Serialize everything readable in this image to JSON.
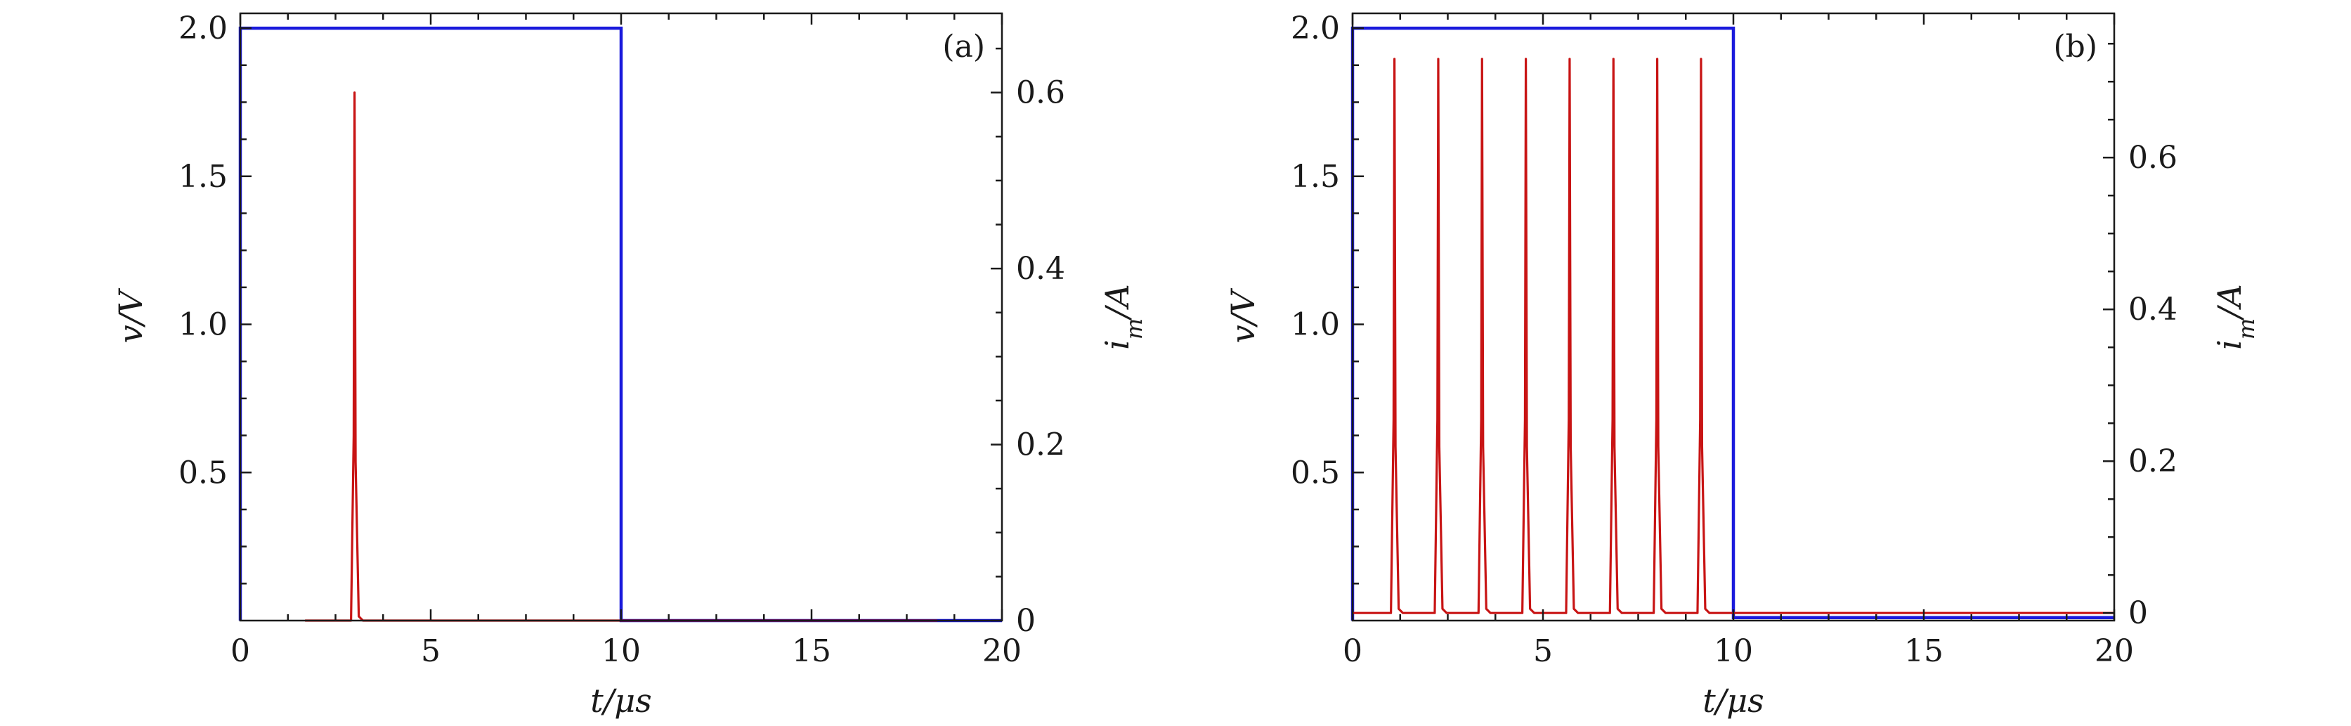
{
  "chart_data": [
    {
      "type": "line",
      "panel_label": "(a)",
      "xlabel": "t/μs",
      "ylabel_left": "v/V",
      "ylabel_right": "i_m/A",
      "xlim": [
        0,
        20
      ],
      "ylim_left": [
        0,
        2.05
      ],
      "ylim_right": [
        0,
        0.69
      ],
      "x_ticks": [
        0,
        5,
        10,
        15,
        20
      ],
      "y_ticks_left": [
        0.5,
        1.0,
        1.5,
        2.0
      ],
      "y_ticks_right": [
        0,
        0.2,
        0.4,
        0.6
      ],
      "x_tick_labels": [
        "0",
        "5",
        "10",
        "15",
        "20"
      ],
      "y_tick_labels_left": [
        "0.5",
        "1.0",
        "1.5",
        "2.0"
      ],
      "y_tick_labels_right": [
        "0",
        "0.2",
        "0.4",
        "0.6"
      ],
      "series": [
        {
          "axis": "left",
          "color": "#1a1adc",
          "kind": "step",
          "x": [
            0,
            0,
            10,
            10,
            20
          ],
          "y": [
            0,
            2.0,
            2.0,
            0,
            0
          ]
        },
        {
          "axis": "right",
          "color": "#c81414",
          "kind": "spikes",
          "x_start": 1.7,
          "x_end": 18.3,
          "baseline": 0.0,
          "spike_x": [
            3.0
          ],
          "spike_peak": 0.6
        }
      ]
    },
    {
      "type": "line",
      "panel_label": "(b)",
      "xlabel": "t/μs",
      "ylabel_left": "v/V",
      "ylabel_right": "i_m/A",
      "xlim": [
        0,
        20
      ],
      "ylim_left": [
        0,
        2.05
      ],
      "ylim_right": [
        -0.01,
        0.79
      ],
      "x_ticks": [
        0,
        5,
        10,
        15,
        20
      ],
      "y_ticks_left": [
        0.5,
        1.0,
        1.5,
        2.0
      ],
      "y_ticks_right": [
        0,
        0.2,
        0.4,
        0.6
      ],
      "x_tick_labels": [
        "0",
        "5",
        "10",
        "15",
        "20"
      ],
      "y_tick_labels_left": [
        "0.5",
        "1.0",
        "1.5",
        "2.0"
      ],
      "y_tick_labels_right": [
        "0",
        "0.2",
        "0.4",
        "0.6"
      ],
      "series": [
        {
          "axis": "left",
          "color": "#1a1adc",
          "kind": "step",
          "x": [
            0,
            0,
            10,
            10,
            20
          ],
          "y": [
            0,
            2.0,
            2.0,
            0.01,
            0.01
          ]
        },
        {
          "axis": "right",
          "color": "#c81414",
          "kind": "spikes",
          "x_start": 0,
          "x_end": 20,
          "baseline": 0.0,
          "spike_x": [
            1.1,
            2.25,
            3.4,
            4.55,
            5.7,
            6.85,
            8.0,
            9.15
          ],
          "spike_peak": 0.73
        }
      ]
    }
  ]
}
